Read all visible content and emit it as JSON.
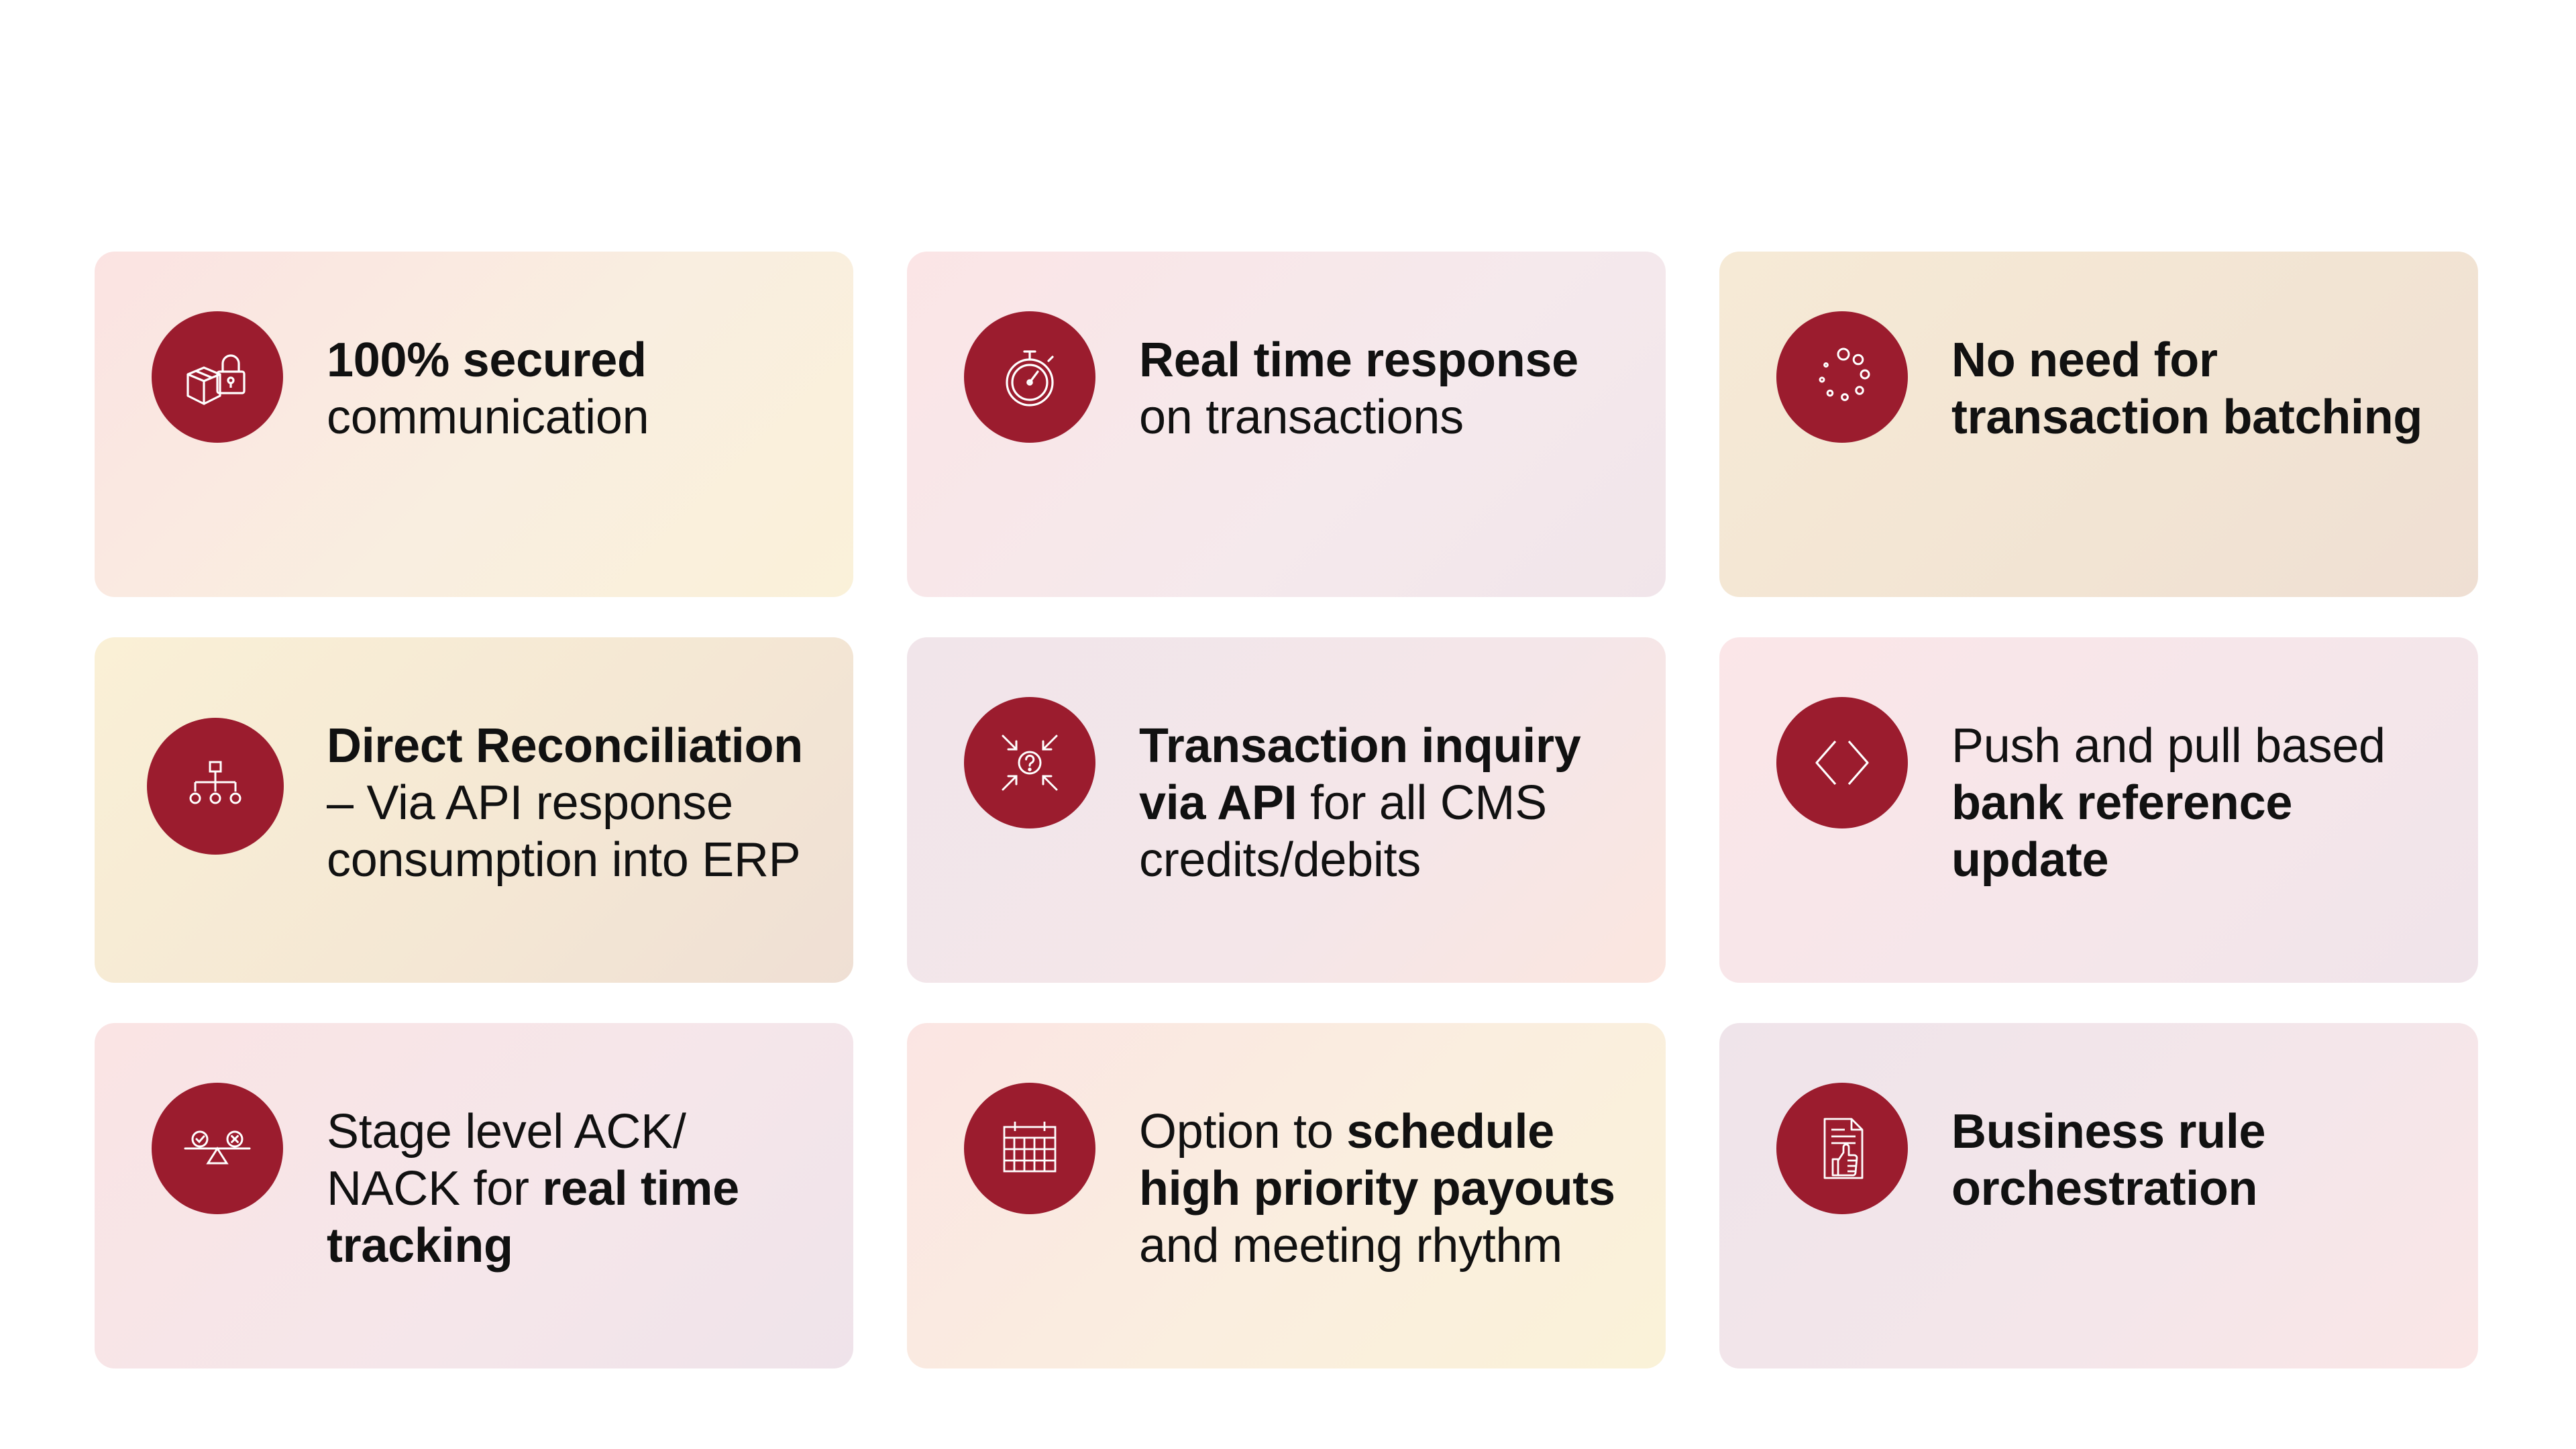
{
  "cards": [
    {
      "icon": "lock-box-icon",
      "segments": [
        {
          "text": "100% secured",
          "bold": true
        },
        {
          "text": " communication",
          "bold": false
        }
      ]
    },
    {
      "icon": "stopwatch-icon",
      "segments": [
        {
          "text": "Real time response",
          "bold": true
        },
        {
          "text": " on transactions",
          "bold": false
        }
      ]
    },
    {
      "icon": "loading-dots-icon",
      "segments": [
        {
          "text": "No need for transaction batching",
          "bold": true
        }
      ]
    },
    {
      "icon": "hierarchy-icon",
      "segments": [
        {
          "text": "Direct Reconciliation",
          "bold": true
        },
        {
          "text": " – Via API response consumption into ERP",
          "bold": false
        }
      ]
    },
    {
      "icon": "question-arrows-icon",
      "segments": [
        {
          "text": "Transaction inquiry via API",
          "bold": true
        },
        {
          "text": " for all CMS credits/debits",
          "bold": false
        }
      ]
    },
    {
      "icon": "code-brackets-icon",
      "segments": [
        {
          "text": "Push and pull based ",
          "bold": false
        },
        {
          "text": "bank reference update",
          "bold": true
        }
      ]
    },
    {
      "icon": "balance-scale-icon",
      "segments": [
        {
          "text": "Stage level ACK/ NACK for ",
          "bold": false
        },
        {
          "text": "real time tracking",
          "bold": true
        }
      ]
    },
    {
      "icon": "calendar-icon",
      "segments": [
        {
          "text": "Option to ",
          "bold": false
        },
        {
          "text": "schedule high priority payouts",
          "bold": true
        },
        {
          "text": " and meeting rhythm",
          "bold": false
        }
      ]
    },
    {
      "icon": "document-thumbs-up-icon",
      "segments": [
        {
          "text": "Business rule orchestration",
          "bold": true
        }
      ]
    }
  ]
}
